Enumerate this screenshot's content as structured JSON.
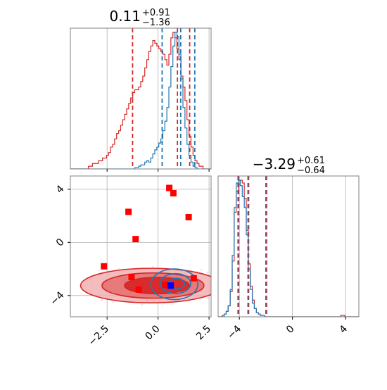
{
  "chart_data": {
    "type": "corner",
    "colors": {
      "series_a": "#1f77b4",
      "series_b": "#d62728",
      "markers": "#ff0000",
      "marker_highlight": "#0000ff",
      "grid": "#b0b0b0"
    },
    "grid": true,
    "parameters": [
      {
        "title_main": "0.11",
        "title_upper": "+0.91",
        "title_lower": "−1.36",
        "range": [
          -4.3,
          2.6
        ],
        "ticks": [
          -2.5,
          0.0,
          2.5
        ],
        "tick_labels": [
          "−2.5",
          "0.0",
          "2.5"
        ],
        "quantiles_a": [
          0.2,
          1.11,
          1.8
        ],
        "quantiles_b": [
          -1.25,
          0.95,
          1.55
        ]
      },
      {
        "title_main": "−3.29",
        "title_upper": "+0.61",
        "title_lower": "−0.64",
        "range": [
          -5.6,
          5.0
        ],
        "ticks": [
          -4,
          0,
          4
        ],
        "tick_labels": [
          "−4",
          "0",
          "4"
        ],
        "quantiles_a": [
          -4.05,
          -3.3,
          -1.95
        ],
        "quantiles_b": [
          -4.1,
          -3.35,
          -2.0
        ]
      }
    ],
    "hist1": {
      "bins": [
        -4.3,
        2.6
      ],
      "series_a": [
        0,
        0,
        0,
        0,
        0,
        0,
        0,
        0,
        0,
        0,
        0,
        0,
        0,
        0,
        0,
        0,
        0,
        0,
        0,
        0,
        0,
        0,
        0,
        0,
        0,
        0,
        0,
        0,
        0,
        0,
        0,
        0,
        1,
        1,
        2,
        3,
        3,
        5,
        6,
        5,
        8,
        11,
        14,
        16,
        19,
        22,
        28,
        35,
        45,
        60,
        75,
        90,
        100,
        97,
        84,
        66,
        45,
        30,
        18,
        10,
        5,
        2,
        1,
        0,
        0,
        0,
        0,
        0,
        0,
        0
      ],
      "series_b": [
        0,
        0,
        0,
        0,
        0,
        0,
        0,
        0,
        0,
        1,
        1,
        2,
        2,
        2,
        3,
        3,
        4,
        4,
        5,
        6,
        8,
        9,
        11,
        13,
        14,
        16,
        18,
        20,
        22,
        24,
        26,
        28,
        29,
        29,
        30,
        32,
        34,
        37,
        40,
        43,
        45,
        47,
        46,
        45,
        44,
        43,
        42,
        40,
        38,
        42,
        48,
        50,
        48,
        44,
        40,
        34,
        30,
        25,
        18,
        12,
        8,
        5,
        3,
        2,
        1,
        1,
        0,
        0,
        0,
        0
      ]
    },
    "hist2": {
      "bins": [
        -5.6,
        5.0
      ],
      "series_a": [
        0,
        0,
        0,
        2,
        4,
        8,
        20,
        45,
        80,
        98,
        100,
        96,
        88,
        80,
        60,
        35,
        20,
        10,
        6,
        3,
        2,
        1,
        1,
        0,
        0,
        0,
        0,
        0,
        0,
        0,
        0,
        0,
        0,
        0,
        0,
        0,
        0,
        0,
        0,
        0,
        0,
        0,
        0,
        0,
        0,
        0,
        0,
        0,
        0,
        0,
        0,
        0,
        0,
        0,
        0,
        0,
        0,
        0,
        0,
        0,
        0,
        0,
        0,
        0,
        0,
        0,
        0,
        0,
        0,
        0
      ],
      "series_b": [
        0,
        0,
        1,
        2,
        4,
        8,
        18,
        40,
        75,
        90,
        95,
        98,
        96,
        85,
        62,
        38,
        22,
        12,
        6,
        3,
        2,
        1,
        1,
        0,
        0,
        0,
        0,
        0,
        0,
        0,
        0,
        0,
        0,
        0,
        0,
        0,
        0,
        0,
        0,
        0,
        0,
        0,
        0,
        0,
        0,
        0,
        0,
        0,
        0,
        0,
        0,
        0,
        0,
        0,
        0,
        0,
        0,
        0,
        0,
        0,
        0,
        1,
        1,
        0,
        0,
        0,
        0,
        0,
        0,
        0
      ]
    },
    "markers": [
      {
        "x": 0.55,
        "y": 4.1
      },
      {
        "x": 0.75,
        "y": 3.7
      },
      {
        "x": -1.45,
        "y": 2.3
      },
      {
        "x": 1.5,
        "y": 1.9
      },
      {
        "x": -1.1,
        "y": 0.25
      },
      {
        "x": -2.65,
        "y": -1.8
      },
      {
        "x": -1.3,
        "y": -2.6
      },
      {
        "x": -0.95,
        "y": -3.55
      },
      {
        "x": 0.35,
        "y": -3.2
      },
      {
        "x": 1.75,
        "y": -2.7
      }
    ],
    "highlight_marker": {
      "x": 0.62,
      "y": -3.25
    },
    "contours_b": [
      {
        "cx": -0.35,
        "cy": -3.25,
        "rx": 3.45,
        "ry": 1.3
      },
      {
        "cx": -0.25,
        "cy": -3.25,
        "rx": 2.5,
        "ry": 0.95
      },
      {
        "cx": -0.05,
        "cy": -3.25,
        "rx": 1.6,
        "ry": 0.62
      }
    ],
    "contours_a": [
      {
        "cx": 0.8,
        "cy": -3.15,
        "rx": 1.15,
        "ry": 1.15
      },
      {
        "cx": 0.85,
        "cy": -3.1,
        "rx": 0.75,
        "ry": 0.75
      },
      {
        "cx": 0.9,
        "cy": -3.1,
        "rx": 0.4,
        "ry": 0.4
      }
    ]
  }
}
